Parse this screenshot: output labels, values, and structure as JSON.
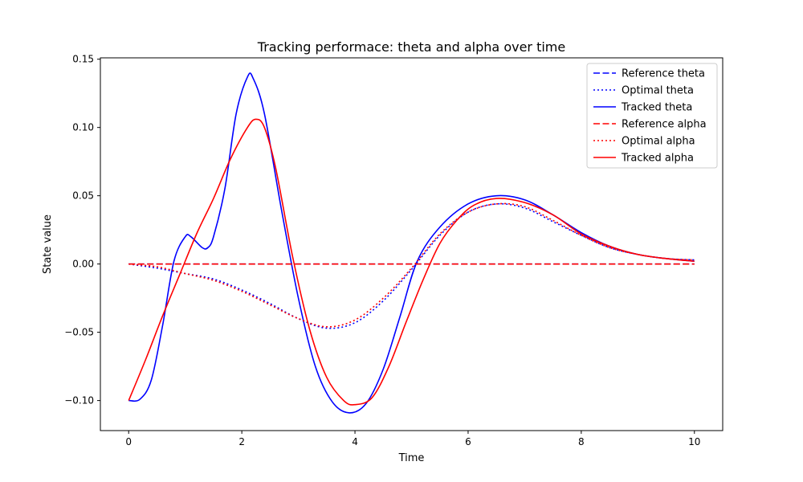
{
  "chart_data": {
    "type": "line",
    "title": "Tracking performace: theta and alpha over time",
    "xlabel": "Time",
    "ylabel": "State value",
    "xlim": [
      -0.5,
      10.5
    ],
    "ylim": [
      -0.122,
      0.151
    ],
    "xticks": [
      0,
      2,
      4,
      6,
      8,
      10
    ],
    "yticks": [
      -0.1,
      -0.05,
      0.0,
      0.05,
      0.1,
      0.15
    ],
    "xtick_labels": [
      "0",
      "2",
      "4",
      "6",
      "8",
      "10"
    ],
    "ytick_labels": [
      "−0.10",
      "−0.05",
      "0.00",
      "0.05",
      "0.10",
      "0.15"
    ],
    "grid": false,
    "legend_position": "top-right",
    "series": [
      {
        "name": "Reference theta",
        "color": "#0000ff",
        "style": "dashed",
        "points": [
          [
            0,
            0
          ],
          [
            10,
            0
          ]
        ]
      },
      {
        "name": "Optimal theta",
        "color": "#0000ff",
        "style": "dotted",
        "points": [
          [
            0,
            0
          ],
          [
            0.5,
            -0.003
          ],
          [
            1.0,
            -0.007
          ],
          [
            1.5,
            -0.011
          ],
          [
            2.0,
            -0.019
          ],
          [
            2.5,
            -0.029
          ],
          [
            3.0,
            -0.04
          ],
          [
            3.5,
            -0.047
          ],
          [
            4.0,
            -0.043
          ],
          [
            4.5,
            -0.027
          ],
          [
            5.0,
            -0.004
          ],
          [
            5.5,
            0.021
          ],
          [
            6.0,
            0.038
          ],
          [
            6.5,
            0.044
          ],
          [
            7.0,
            0.041
          ],
          [
            7.5,
            0.031
          ],
          [
            8.0,
            0.021
          ],
          [
            8.5,
            0.012
          ],
          [
            9.0,
            0.007
          ],
          [
            9.5,
            0.004
          ],
          [
            10.0,
            0.003
          ]
        ]
      },
      {
        "name": "Tracked theta",
        "color": "#0000ff",
        "style": "solid",
        "points": [
          [
            0,
            -0.1
          ],
          [
            0.2,
            -0.099
          ],
          [
            0.4,
            -0.085
          ],
          [
            0.6,
            -0.045
          ],
          [
            0.8,
            0.002
          ],
          [
            1.0,
            0.02
          ],
          [
            1.1,
            0.02
          ],
          [
            1.3,
            0.012
          ],
          [
            1.4,
            0.012
          ],
          [
            1.5,
            0.02
          ],
          [
            1.7,
            0.055
          ],
          [
            1.9,
            0.11
          ],
          [
            2.1,
            0.137
          ],
          [
            2.2,
            0.136
          ],
          [
            2.4,
            0.11
          ],
          [
            2.7,
            0.04
          ],
          [
            3.0,
            -0.025
          ],
          [
            3.3,
            -0.075
          ],
          [
            3.6,
            -0.101
          ],
          [
            3.9,
            -0.109
          ],
          [
            4.2,
            -0.102
          ],
          [
            4.5,
            -0.077
          ],
          [
            4.8,
            -0.038
          ],
          [
            5.1,
            0.002
          ],
          [
            5.5,
            0.027
          ],
          [
            6.0,
            0.044
          ],
          [
            6.5,
            0.05
          ],
          [
            7.0,
            0.047
          ],
          [
            7.5,
            0.036
          ],
          [
            8.0,
            0.023
          ],
          [
            8.5,
            0.013
          ],
          [
            9.0,
            0.007
          ],
          [
            9.5,
            0.004
          ],
          [
            10.0,
            0.002
          ]
        ]
      },
      {
        "name": "Reference alpha",
        "color": "#ff0000",
        "style": "dashed",
        "points": [
          [
            0,
            0
          ],
          [
            10,
            0
          ]
        ]
      },
      {
        "name": "Optimal alpha",
        "color": "#ff0000",
        "style": "dotted",
        "points": [
          [
            0,
            0
          ],
          [
            0.5,
            -0.002
          ],
          [
            1.0,
            -0.007
          ],
          [
            1.5,
            -0.012
          ],
          [
            2.0,
            -0.02
          ],
          [
            2.5,
            -0.03
          ],
          [
            3.0,
            -0.04
          ],
          [
            3.5,
            -0.046
          ],
          [
            4.0,
            -0.041
          ],
          [
            4.5,
            -0.025
          ],
          [
            5.0,
            -0.003
          ],
          [
            5.5,
            0.022
          ],
          [
            6.0,
            0.038
          ],
          [
            6.5,
            0.044
          ],
          [
            7.0,
            0.042
          ],
          [
            7.5,
            0.032
          ],
          [
            8.0,
            0.021
          ],
          [
            8.5,
            0.012
          ],
          [
            9.0,
            0.007
          ],
          [
            9.5,
            0.004
          ],
          [
            10.0,
            0.003
          ]
        ]
      },
      {
        "name": "Tracked alpha",
        "color": "#ff0000",
        "style": "solid",
        "points": [
          [
            0,
            -0.1
          ],
          [
            0.3,
            -0.07
          ],
          [
            0.6,
            -0.038
          ],
          [
            0.9,
            -0.008
          ],
          [
            1.2,
            0.022
          ],
          [
            1.5,
            0.048
          ],
          [
            1.8,
            0.077
          ],
          [
            2.1,
            0.1
          ],
          [
            2.25,
            0.106
          ],
          [
            2.4,
            0.1
          ],
          [
            2.6,
            0.07
          ],
          [
            2.9,
            0.005
          ],
          [
            3.2,
            -0.048
          ],
          [
            3.5,
            -0.083
          ],
          [
            3.8,
            -0.1
          ],
          [
            4.0,
            -0.103
          ],
          [
            4.3,
            -0.098
          ],
          [
            4.6,
            -0.075
          ],
          [
            4.9,
            -0.043
          ],
          [
            5.2,
            -0.012
          ],
          [
            5.5,
            0.015
          ],
          [
            5.8,
            0.032
          ],
          [
            6.1,
            0.043
          ],
          [
            6.5,
            0.048
          ],
          [
            7.0,
            0.045
          ],
          [
            7.5,
            0.036
          ],
          [
            8.0,
            0.022
          ],
          [
            8.5,
            0.013
          ],
          [
            9.0,
            0.007
          ],
          [
            9.5,
            0.004
          ],
          [
            10.0,
            0.002
          ]
        ]
      }
    ]
  }
}
